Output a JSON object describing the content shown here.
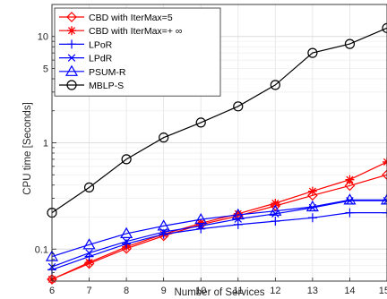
{
  "chart_data": {
    "type": "line",
    "title": "",
    "xlabel": "Number of Services",
    "ylabel": "CPU time [Seconds]",
    "xscale": "linear",
    "yscale": "log",
    "xlim": [
      6,
      15
    ],
    "ylim": [
      0.05,
      20
    ],
    "grid": true,
    "legend_position": "top-left",
    "x": [
      6,
      7,
      8,
      9,
      10,
      11,
      12,
      13,
      14,
      15
    ],
    "x_ticks": [
      "6",
      "7",
      "8",
      "9",
      "10",
      "11",
      "12",
      "13",
      "14",
      "15"
    ],
    "y_ticks": [
      {
        "value": 0.1,
        "label": "0.1"
      },
      {
        "value": 1,
        "label": "1"
      },
      {
        "value": 5,
        "label": "5"
      },
      {
        "value": 10,
        "label": "10"
      }
    ],
    "series": [
      {
        "name": "CBD with IterMax=5",
        "color": "#ff0000",
        "marker": "diamond",
        "values": [
          0.052,
          0.073,
          0.101,
          0.133,
          0.17,
          0.205,
          0.255,
          0.32,
          0.395,
          0.5
        ]
      },
      {
        "name": "CBD with IterMax=+ ∞",
        "color": "#ff0000",
        "marker": "asterisk",
        "values": [
          0.052,
          0.075,
          0.105,
          0.138,
          0.175,
          0.215,
          0.27,
          0.35,
          0.45,
          0.66
        ]
      },
      {
        "name": "LPoR",
        "color": "#0000ff",
        "marker": "plus",
        "values": [
          0.064,
          0.085,
          0.112,
          0.138,
          0.155,
          0.17,
          0.183,
          0.197,
          0.22,
          0.22
        ]
      },
      {
        "name": "LPdR",
        "color": "#0000ff",
        "marker": "cross",
        "values": [
          0.068,
          0.092,
          0.118,
          0.145,
          0.165,
          0.192,
          0.215,
          0.245,
          0.285,
          0.285
        ]
      },
      {
        "name": "PSUM-R",
        "color": "#0000ff",
        "marker": "triangle",
        "values": [
          0.085,
          0.11,
          0.14,
          0.165,
          0.19,
          0.21,
          0.228,
          0.25,
          0.29,
          0.29
        ]
      },
      {
        "name": "MBLP-S",
        "color": "#000000",
        "marker": "circle",
        "values": [
          0.22,
          0.38,
          0.7,
          1.12,
          1.55,
          2.2,
          3.5,
          7.0,
          8.5,
          12.0
        ]
      }
    ]
  }
}
